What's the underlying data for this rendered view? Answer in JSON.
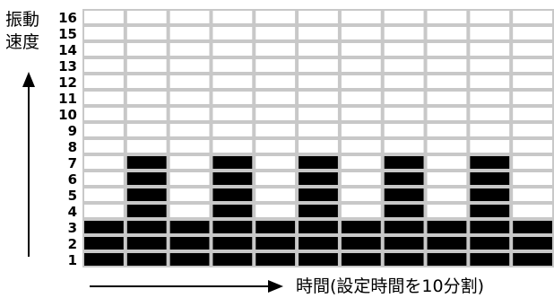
{
  "y_axis_label": [
    "振動",
    "速度"
  ],
  "x_axis_label": "時間(設定時間を10分割)",
  "colors": {
    "filled": "#000000",
    "empty": "#ffffff",
    "grid": "#c8c8c8",
    "axis_text": "#000000"
  },
  "chart_data": {
    "type": "bar",
    "title": "",
    "ylabel": "振動速度",
    "xlabel": "時間(設定時間を10分割)",
    "y_ticks": [
      1,
      2,
      3,
      4,
      5,
      6,
      7,
      8,
      9,
      10,
      11,
      12,
      13,
      14,
      15,
      16
    ],
    "ylim": [
      0,
      16
    ],
    "categories_count": 11,
    "values": [
      3,
      7,
      3,
      7,
      3,
      7,
      3,
      7,
      3,
      7,
      3
    ],
    "grid": true
  }
}
